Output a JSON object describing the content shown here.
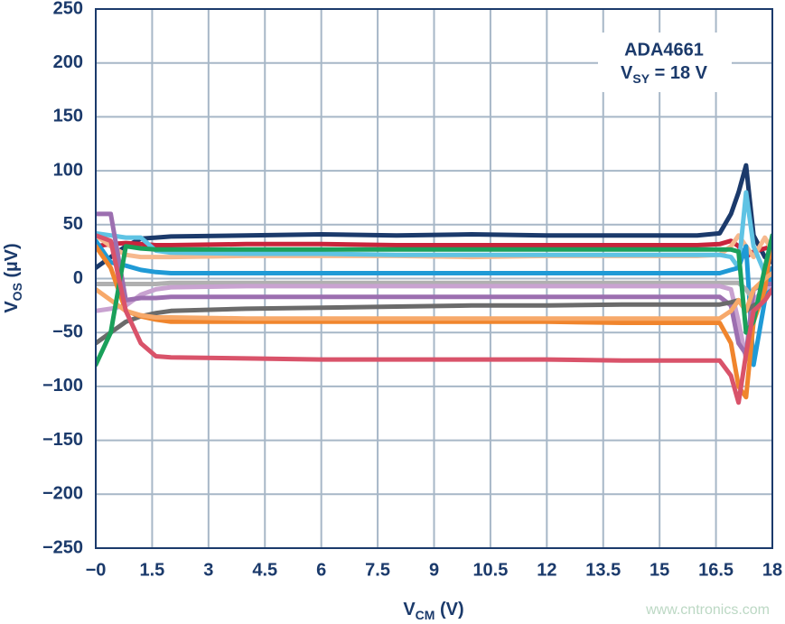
{
  "chart_data": {
    "type": "line",
    "annotation": {
      "line1": "ADA4661",
      "line2": {
        "main": "V",
        "sub": "SY",
        "rest": " = 18 V"
      }
    },
    "x_label": {
      "main": "V",
      "sub": "CM",
      "rest": " (V)"
    },
    "y_label": {
      "main": "V",
      "sub": "OS",
      "rest": " (µV)"
    },
    "watermark": "www.cntronics.com",
    "xlim": [
      0,
      18
    ],
    "xticks": [
      {
        "value": 0,
        "label": "−0"
      },
      1.5,
      3,
      4.5,
      6,
      7.5,
      9,
      10.5,
      12,
      13.5,
      15,
      16.5,
      18
    ],
    "ylim": [
      -250,
      250
    ],
    "yticks": [
      {
        "value": -250,
        "label": "−250"
      },
      {
        "value": -200,
        "label": "−200"
      },
      {
        "value": -150,
        "label": "−150"
      },
      {
        "value": -100,
        "label": "−100"
      },
      {
        "value": -50,
        "label": "−50"
      },
      0,
      50,
      100,
      150,
      200,
      250
    ],
    "grid": true,
    "x": [
      0,
      0.4,
      0.8,
      1.2,
      1.6,
      2,
      4,
      6,
      8,
      10,
      12,
      14,
      16,
      16.6,
      16.9,
      17.1,
      17.3,
      17.5,
      17.8,
      18
    ],
    "series": [
      {
        "color": "#1b3a6b",
        "values": [
          10,
          20,
          30,
          37,
          38,
          39,
          40,
          41,
          40,
          41,
          40,
          40,
          40,
          42,
          60,
          80,
          105,
          40,
          20,
          15
        ]
      },
      {
        "color": "#c8243c",
        "values": [
          30,
          32,
          33,
          32,
          31,
          31,
          32,
          32,
          31,
          31,
          31,
          31,
          31,
          32,
          35,
          30,
          20,
          25,
          28,
          30
        ]
      },
      {
        "color": "#f6b98e",
        "values": [
          40,
          30,
          22,
          20,
          20,
          20,
          21,
          21,
          21,
          20,
          21,
          21,
          21,
          22,
          30,
          40,
          30,
          20,
          38,
          25
        ]
      },
      {
        "color": "#5fc3e4",
        "values": [
          42,
          40,
          38,
          38,
          26,
          24,
          23,
          23,
          22,
          22,
          22,
          22,
          22,
          22,
          20,
          10,
          80,
          30,
          5,
          10
        ]
      },
      {
        "color": "#1f9ad6",
        "values": [
          35,
          15,
          12,
          8,
          6,
          5,
          5,
          5,
          5,
          5,
          5,
          5,
          5,
          5,
          8,
          10,
          30,
          -80,
          -20,
          10
        ]
      },
      {
        "color": "#b0b0b0",
        "values": [
          -5,
          -5,
          -5,
          -5,
          -5,
          -4,
          -4,
          -4,
          -4,
          -4,
          -4,
          -4,
          -4,
          -4,
          -4,
          -4,
          -10,
          -20,
          -10,
          -5
        ]
      },
      {
        "color": "#c8a2d0",
        "values": [
          -30,
          -28,
          -25,
          -15,
          -10,
          -8,
          -7,
          -7,
          -7,
          -7,
          -7,
          -7,
          -7,
          -7,
          -10,
          -40,
          -75,
          -20,
          -10,
          -5
        ]
      },
      {
        "color": "#9c6fb0",
        "values": [
          60,
          60,
          -20,
          -18,
          -18,
          -17,
          -17,
          -17,
          -17,
          -17,
          -17,
          -17,
          -17,
          -17,
          -25,
          -60,
          -70,
          -10,
          -5,
          -5
        ]
      },
      {
        "color": "#6b6b6b",
        "values": [
          -60,
          -50,
          -40,
          -35,
          -32,
          -30,
          -28,
          -27,
          -26,
          -25,
          -25,
          -24,
          -24,
          -24,
          -22,
          -20,
          -30,
          -25,
          -20,
          -10
        ]
      },
      {
        "color": "#f0852d",
        "values": [
          30,
          10,
          -30,
          -35,
          -38,
          -40,
          -40,
          -40,
          -40,
          -40,
          -40,
          -41,
          -41,
          -41,
          -60,
          -100,
          -110,
          -40,
          -10,
          40
        ]
      },
      {
        "color": "#f7a96a",
        "values": [
          -10,
          -20,
          -30,
          -34,
          -36,
          -36,
          -37,
          -37,
          -37,
          -37,
          -37,
          -37,
          -37,
          -37,
          -30,
          -20,
          -30,
          -10,
          0,
          5
        ]
      },
      {
        "color": "#1aa05a",
        "values": [
          -80,
          -50,
          30,
          28,
          27,
          27,
          27,
          27,
          27,
          27,
          27,
          27,
          27,
          27,
          27,
          25,
          -50,
          -40,
          10,
          40
        ]
      },
      {
        "color": "#d9536a",
        "values": [
          40,
          35,
          -30,
          -60,
          -72,
          -73,
          -74,
          -75,
          -75,
          -75,
          -75,
          -76,
          -76,
          -76,
          -90,
          -115,
          -70,
          -30,
          -20,
          -10
        ]
      }
    ]
  }
}
